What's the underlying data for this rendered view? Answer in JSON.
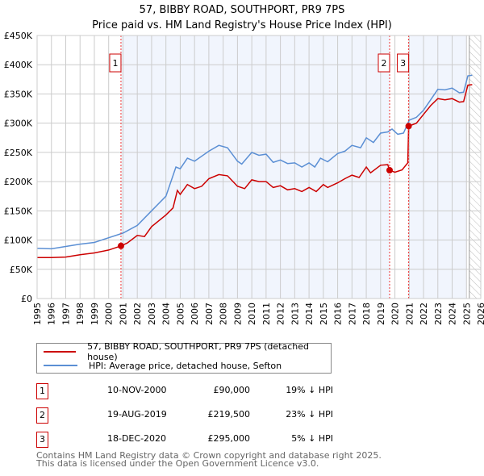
{
  "chart_data": {
    "type": "line",
    "title": "57, BIBBY ROAD, SOUTHPORT, PR9 7PS",
    "subtitle": "Price paid vs. HM Land Registry's House Price Index (HPI)",
    "xlim": [
      1995,
      2026
    ],
    "ylim": [
      0,
      450000
    ],
    "x_ticks": [
      "1995",
      "1996",
      "1997",
      "1998",
      "1999",
      "2000",
      "2001",
      "2002",
      "2003",
      "2004",
      "2005",
      "2006",
      "2007",
      "2008",
      "2009",
      "2010",
      "2011",
      "2012",
      "2013",
      "2014",
      "2015",
      "2016",
      "2017",
      "2018",
      "2019",
      "2020",
      "2021",
      "2022",
      "2023",
      "2024",
      "2025",
      "2026"
    ],
    "y_ticks": [
      {
        "v": 0,
        "label": "£0"
      },
      {
        "v": 50000,
        "label": "£50K"
      },
      {
        "v": 100000,
        "label": "£100K"
      },
      {
        "v": 150000,
        "label": "£150K"
      },
      {
        "v": 200000,
        "label": "£200K"
      },
      {
        "v": 250000,
        "label": "£250K"
      },
      {
        "v": 300000,
        "label": "£300K"
      },
      {
        "v": 350000,
        "label": "£350K"
      },
      {
        "v": 400000,
        "label": "£400K"
      },
      {
        "v": 450000,
        "label": "£450K"
      }
    ],
    "grid": true,
    "series": [
      {
        "name": "57, BIBBY ROAD, SOUTHPORT, PR9 7PS (detached house)",
        "color": "#cc0000",
        "x": [
          1995,
          1996,
          1997,
          1998,
          1999,
          2000,
          2000.86,
          2001.3,
          2002,
          2002.5,
          2003,
          2004,
          2004.5,
          2004.8,
          2005,
          2005.5,
          2006,
          2006.5,
          2007,
          2007.7,
          2008.3,
          2009,
          2009.5,
          2010,
          2010.5,
          2011,
          2011.5,
          2012,
          2012.5,
          2013,
          2013.5,
          2014,
          2014.5,
          2015,
          2015.3,
          2016,
          2016.5,
          2017,
          2017.5,
          2018,
          2018.3,
          2019,
          2019.5,
          2019.63,
          2020,
          2020.5,
          2020.9,
          2020.96,
          2021.5,
          2022,
          2022.5,
          2023,
          2023.5,
          2024,
          2024.5,
          2024.8,
          2025.1,
          2025.4
        ],
        "y": [
          70000,
          70000,
          71000,
          75000,
          78000,
          83000,
          90000,
          95000,
          108000,
          106000,
          123000,
          143000,
          155000,
          185000,
          178000,
          195000,
          188000,
          192000,
          205000,
          212000,
          210000,
          192000,
          188000,
          203000,
          200000,
          200000,
          190000,
          193000,
          186000,
          188000,
          183000,
          190000,
          183000,
          195000,
          190000,
          198000,
          205000,
          211000,
          207000,
          225000,
          215000,
          228000,
          229000,
          219500,
          216000,
          220000,
          232000,
          295000,
          300000,
          315000,
          330000,
          342000,
          340000,
          342000,
          336000,
          337000,
          365000,
          366000
        ]
      },
      {
        "name": "HPI: Average price, detached house, Sefton",
        "color": "#5b8fd4",
        "x": [
          1995,
          1996,
          1997,
          1998,
          1999,
          2000,
          2001,
          2002,
          2003,
          2004,
          2004.7,
          2005,
          2005.5,
          2006,
          2007,
          2007.7,
          2008.3,
          2009,
          2009.3,
          2010,
          2010.5,
          2011,
          2011.5,
          2012,
          2012.5,
          2013,
          2013.5,
          2014,
          2014.4,
          2014.8,
          2015.3,
          2016,
          2016.5,
          2017,
          2017.6,
          2018,
          2018.5,
          2019,
          2019.5,
          2019.8,
          2020.2,
          2020.6,
          2021,
          2021.5,
          2022,
          2022.5,
          2023,
          2023.5,
          2024,
          2024.5,
          2024.8,
          2025.1,
          2025.4
        ],
        "y": [
          86000,
          85000,
          89000,
          93000,
          96000,
          104000,
          112000,
          125000,
          150000,
          175000,
          225000,
          222000,
          240000,
          235000,
          252000,
          262000,
          258000,
          235000,
          230000,
          250000,
          245000,
          247000,
          233000,
          237000,
          231000,
          232000,
          225000,
          232000,
          225000,
          240000,
          234000,
          248000,
          252000,
          262000,
          258000,
          275000,
          267000,
          283000,
          285000,
          290000,
          281000,
          283000,
          305000,
          310000,
          322000,
          340000,
          358000,
          357000,
          360000,
          352000,
          353000,
          381000,
          382000
        ]
      }
    ],
    "sales": [
      {
        "id": "1",
        "x": 2000.86,
        "price": 90000,
        "date": "10-NOV-2000",
        "price_label": "£90,000",
        "hpi": "19% ↓ HPI"
      },
      {
        "id": "2",
        "x": 2019.63,
        "price": 219500,
        "date": "19-AUG-2019",
        "price_label": "£219,500",
        "hpi": "23% ↓ HPI"
      },
      {
        "id": "3",
        "x": 2020.96,
        "price": 295000,
        "date": "18-DEC-2020",
        "price_label": "£295,000",
        "hpi": "5% ↓ HPI"
      }
    ],
    "shaded_ranges": [
      [
        2000.86,
        2019.63
      ],
      [
        2020.96,
        2025.0
      ]
    ],
    "forecast_hatch_from": 2025.2,
    "legend_placement": "below"
  },
  "footer": {
    "line1": "Contains HM Land Registry data © Crown copyright and database right 2025.",
    "line2": "This data is licensed under the Open Government Licence v3.0."
  }
}
